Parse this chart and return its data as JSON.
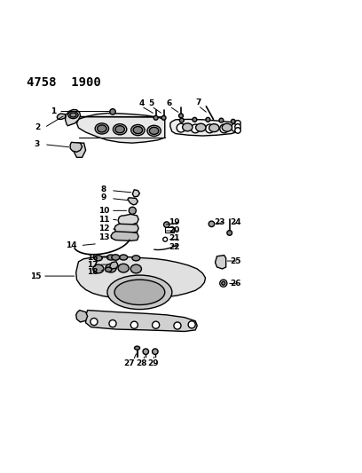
{
  "title": "4758  1900",
  "bg_color": "#ffffff",
  "line_color": "#000000",
  "fig_width": 4.08,
  "fig_height": 5.33,
  "dpi": 100
}
